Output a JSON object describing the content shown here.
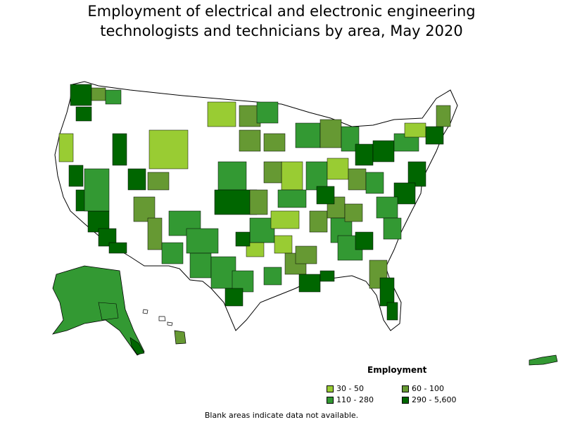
{
  "title": {
    "line1": "Employment of electrical and electronic engineering",
    "line2": "technologists and technicians by area, May 2020"
  },
  "legend": {
    "title": "Employment",
    "items": [
      {
        "label": "30 - 50",
        "color": "#99cc33"
      },
      {
        "label": "60 - 100",
        "color": "#669933"
      },
      {
        "label": "110 - 280",
        "color": "#339933"
      },
      {
        "label": "290 - 5,600",
        "color": "#006600"
      }
    ]
  },
  "footnote": "Blank areas indicate data not available.",
  "colors": {
    "blank": "#ffffff",
    "border": "#000000",
    "c1": "#99cc33",
    "c2": "#669933",
    "c3": "#339933",
    "c4": "#006600"
  }
}
